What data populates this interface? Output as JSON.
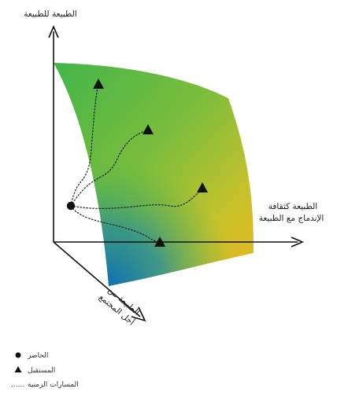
{
  "axes": {
    "vertical": "الطبيعة للطبيعة",
    "horizontal_line1": "الطبيعة كثقافة",
    "horizontal_line2": "الإندماج مع الطبيعة",
    "diagonal_line1": "الطبيعة من",
    "diagonal_line2": "أجل المجتمع"
  },
  "legend": {
    "present": "الحاضر",
    "future": "المستقبل",
    "pathways_marker": "......",
    "pathways": "المسارات الزمنية"
  },
  "surface_colors": {
    "green": "#3db54a",
    "yellow": "#f0b21e",
    "blue": "#0f6fb3"
  }
}
